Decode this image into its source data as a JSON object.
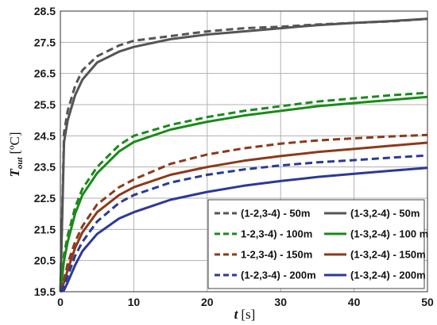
{
  "chart_data": {
    "type": "line",
    "xlabel": {
      "symbol": "t",
      "unit": "[s]"
    },
    "ylabel": {
      "symbol": "T",
      "subscript": "out",
      "unit": "[ºC]"
    },
    "xlim": [
      0,
      50
    ],
    "ylim": [
      19.5,
      28.5
    ],
    "xticks": [
      "0",
      "10",
      "20",
      "30",
      "40",
      "50"
    ],
    "yticks": [
      "19.5",
      "20.5",
      "21.5",
      "22.5",
      "23.5",
      "24.5",
      "25.5",
      "26.5",
      "27.5",
      "28.5"
    ],
    "grid": true,
    "legend_position": "bottom-right",
    "series": [
      {
        "name": "(1-2,3-4) - 50m",
        "color": "#555555",
        "dash": true,
        "x": [
          0,
          0.5,
          1,
          2,
          3,
          5,
          8,
          10,
          15,
          20,
          25,
          30,
          35,
          40,
          45,
          50
        ],
        "y": [
          19.5,
          24.6,
          25.3,
          26.1,
          26.6,
          27.05,
          27.4,
          27.55,
          27.7,
          27.85,
          27.95,
          28.0,
          28.07,
          28.12,
          28.17,
          28.25
        ]
      },
      {
        "name": "(1-3,2-4) - 50m",
        "color": "#555555",
        "dash": false,
        "x": [
          0,
          0.5,
          1,
          2,
          3,
          5,
          8,
          10,
          15,
          20,
          25,
          30,
          35,
          40,
          45,
          50
        ],
        "y": [
          19.5,
          24.3,
          25.0,
          25.8,
          26.3,
          26.85,
          27.2,
          27.35,
          27.6,
          27.75,
          27.85,
          27.95,
          28.05,
          28.12,
          28.18,
          28.25
        ]
      },
      {
        "name": "1-2,3-4) - 100m",
        "color": "#1a8a1a",
        "dash": true,
        "x": [
          0,
          0.5,
          1,
          2,
          3,
          5,
          8,
          10,
          15,
          20,
          25,
          30,
          35,
          40,
          45,
          50
        ],
        "y": [
          19.5,
          20.7,
          21.3,
          22.2,
          22.8,
          23.5,
          24.2,
          24.5,
          24.85,
          25.1,
          25.3,
          25.45,
          25.6,
          25.7,
          25.8,
          25.88
        ]
      },
      {
        "name": "(1-3,2-4) - 100 m",
        "color": "#1a8a1a",
        "dash": false,
        "x": [
          0,
          0.5,
          1,
          2,
          3,
          5,
          8,
          10,
          15,
          20,
          25,
          30,
          35,
          40,
          45,
          50
        ],
        "y": [
          19.5,
          20.5,
          21.1,
          22.0,
          22.6,
          23.3,
          24.0,
          24.3,
          24.7,
          24.95,
          25.15,
          25.3,
          25.45,
          25.55,
          25.65,
          25.75
        ]
      },
      {
        "name": "1-2,3-4) - 150m",
        "color": "#8b3a1a",
        "dash": true,
        "x": [
          0,
          0.5,
          1,
          2,
          3,
          5,
          8,
          10,
          15,
          20,
          25,
          30,
          35,
          40,
          45,
          50
        ],
        "y": [
          19.5,
          19.9,
          20.4,
          21.1,
          21.6,
          22.3,
          22.85,
          23.1,
          23.6,
          23.9,
          24.1,
          24.25,
          24.35,
          24.42,
          24.48,
          24.53
        ]
      },
      {
        "name": "(1-3,2-4) - 150m",
        "color": "#8b3a1a",
        "dash": false,
        "x": [
          0,
          0.5,
          1,
          2,
          3,
          5,
          8,
          10,
          15,
          20,
          25,
          30,
          35,
          40,
          45,
          50
        ],
        "y": [
          19.5,
          19.8,
          20.2,
          20.9,
          21.4,
          22.05,
          22.6,
          22.85,
          23.25,
          23.5,
          23.7,
          23.85,
          23.98,
          24.08,
          24.18,
          24.28
        ]
      },
      {
        "name": "(1-2,3-4) - 200m",
        "color": "#2b3a96",
        "dash": true,
        "x": [
          0,
          0.5,
          1,
          2,
          3,
          5,
          8,
          10,
          15,
          20,
          25,
          30,
          35,
          40,
          45,
          50
        ],
        "y": [
          19.5,
          19.7,
          20.0,
          20.65,
          21.1,
          21.75,
          22.35,
          22.6,
          23.0,
          23.25,
          23.42,
          23.55,
          23.65,
          23.72,
          23.8,
          23.87
        ]
      },
      {
        "name": "(1-3,2-4) - 200m",
        "color": "#2b3a96",
        "dash": false,
        "x": [
          0,
          0.5,
          1,
          2,
          3,
          5,
          8,
          10,
          15,
          20,
          25,
          30,
          35,
          40,
          45,
          50
        ],
        "y": [
          19.5,
          19.55,
          19.8,
          20.35,
          20.8,
          21.35,
          21.85,
          22.05,
          22.45,
          22.7,
          22.9,
          23.05,
          23.18,
          23.28,
          23.38,
          23.47
        ]
      }
    ]
  }
}
